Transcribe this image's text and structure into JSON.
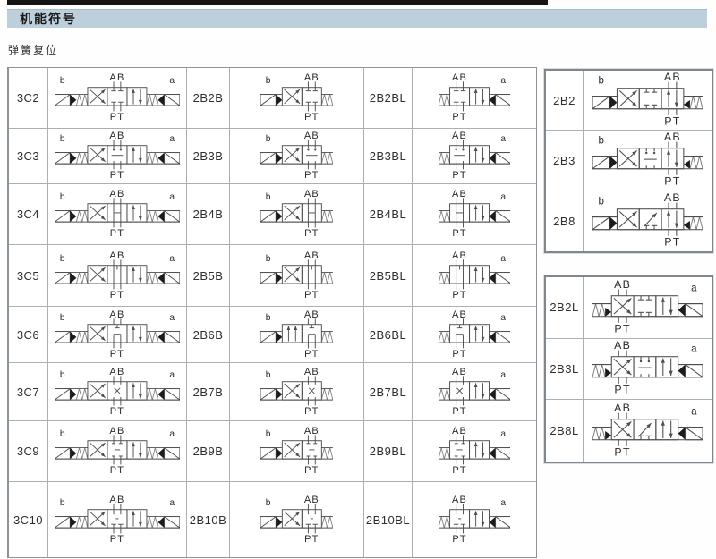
{
  "page": {
    "title": "机能符号",
    "subtitle": "弹簧复位"
  },
  "colors": {
    "top_rule": "#141414",
    "header_bar": "#bccfdb",
    "table_border": "#8d9499",
    "grid_line": "#aab0b5",
    "line": "#4d4d4d",
    "spring": "#7c7c7c",
    "fill": "#1c1c1c"
  },
  "symbol_text": {
    "top": "AB",
    "bottom": "PT",
    "left": "b",
    "right": "a"
  },
  "main_table": {
    "rows": [
      {
        "cells": [
          {
            "label": "3C2",
            "valve": {
              "type": "3pos",
              "spool": "2"
            }
          },
          {
            "label": "2B2B",
            "valve": {
              "type": "2posB",
              "spool": "2"
            }
          },
          {
            "label": "2B2BL",
            "valve": {
              "type": "2posBL",
              "spool": "2"
            }
          }
        ]
      },
      {
        "cells": [
          {
            "label": "3C3",
            "valve": {
              "type": "3pos",
              "spool": "3"
            }
          },
          {
            "label": "2B3B",
            "valve": {
              "type": "2posB",
              "spool": "3"
            }
          },
          {
            "label": "2B3BL",
            "valve": {
              "type": "2posBL",
              "spool": "3"
            }
          }
        ]
      },
      {
        "cells": [
          {
            "label": "3C4",
            "valve": {
              "type": "3pos",
              "spool": "4"
            }
          },
          {
            "label": "2B4B",
            "valve": {
              "type": "2posB",
              "spool": "4"
            }
          },
          {
            "label": "2B4BL",
            "valve": {
              "type": "2posBL",
              "spool": "4"
            }
          }
        ]
      },
      {
        "cells": [
          {
            "label": "3C5",
            "valve": {
              "type": "3pos",
              "spool": "5"
            }
          },
          {
            "label": "2B5B",
            "valve": {
              "type": "2posB",
              "spool": "5"
            }
          },
          {
            "label": "2B5BL",
            "valve": {
              "type": "2posBL",
              "spool": "5"
            }
          }
        ]
      },
      {
        "cells": [
          {
            "label": "3C6",
            "valve": {
              "type": "3pos",
              "spool": "6"
            }
          },
          {
            "label": "2B6B",
            "valve": {
              "type": "2posB",
              "spool": "6",
              "shift": "AU"
            }
          },
          {
            "label": "2B6BL",
            "valve": {
              "type": "2posBL",
              "spool": "6"
            }
          }
        ]
      },
      {
        "cells": [
          {
            "label": "3C7",
            "valve": {
              "type": "3pos",
              "spool": "7"
            }
          },
          {
            "label": "2B7B",
            "valve": {
              "type": "2posB",
              "spool": "7"
            }
          },
          {
            "label": "2B7BL",
            "valve": {
              "type": "2posBL",
              "spool": "7"
            }
          }
        ]
      },
      {
        "cells": [
          {
            "label": "3C9",
            "valve": {
              "type": "3pos",
              "spool": "9"
            }
          },
          {
            "label": "2B9B",
            "valve": {
              "type": "2posB",
              "spool": "9"
            }
          },
          {
            "label": "2B9BL",
            "valve": {
              "type": "2posBL",
              "spool": "9"
            }
          }
        ]
      },
      {
        "cells": [
          {
            "label": "3C10",
            "valve": {
              "type": "3pos",
              "spool": "10"
            }
          },
          {
            "label": "2B10B",
            "valve": {
              "type": "2posB",
              "spool": "10"
            }
          },
          {
            "label": "2B10BL",
            "valve": {
              "type": "2posBL",
              "spool": "10"
            }
          }
        ]
      }
    ]
  },
  "side_panels": [
    {
      "rows": [
        {
          "label": "2B2",
          "valve": {
            "type": "3posB",
            "spool": "2"
          }
        },
        {
          "label": "2B3",
          "valve": {
            "type": "3posB",
            "spool": "3"
          }
        },
        {
          "label": "2B8",
          "valve": {
            "type": "3posB",
            "spool": "8"
          }
        }
      ]
    },
    {
      "rows": [
        {
          "label": "2B2L",
          "valve": {
            "type": "3posBL",
            "spool": "2"
          }
        },
        {
          "label": "2B3L",
          "valve": {
            "type": "3posBL",
            "spool": "3"
          }
        },
        {
          "label": "2B8L",
          "valve": {
            "type": "3posBL",
            "spool": "8"
          }
        }
      ]
    }
  ]
}
